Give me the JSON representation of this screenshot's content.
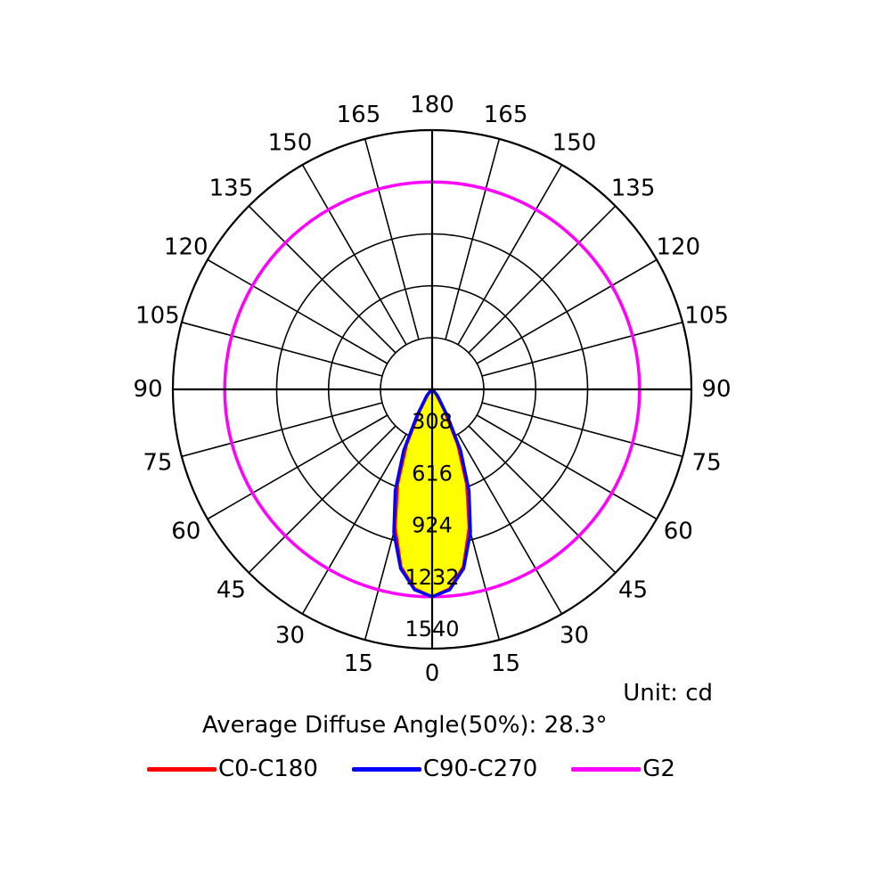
{
  "chart_data": {
    "type": "polar",
    "angle_labels_left": [
      "0",
      "15",
      "30",
      "45",
      "60",
      "75",
      "90",
      "105",
      "120",
      "135",
      "150",
      "165",
      "180"
    ],
    "angle_labels_right": [
      "15",
      "30",
      "45",
      "60",
      "75",
      "90",
      "105",
      "120",
      "135",
      "150",
      "165"
    ],
    "radial_ticks": [
      "308",
      "616",
      "924",
      "1232",
      "1540"
    ],
    "radial_max": 1540,
    "grid": true,
    "series": [
      {
        "name": "C0-C180",
        "color": "#ff0000",
        "fill": "#ffff00",
        "angles": [
          0,
          5,
          10,
          15,
          20,
          25,
          30,
          40,
          50,
          60,
          75,
          90
        ],
        "values": [
          1232,
          1190,
          1070,
          850,
          600,
          360,
          150,
          40,
          8,
          2,
          0,
          0
        ]
      },
      {
        "name": "C90-C270",
        "color": "#0000ff",
        "angles": [
          0,
          5,
          10,
          15,
          20,
          25,
          30,
          40,
          50,
          60,
          75,
          90
        ],
        "values": [
          1232,
          1195,
          1080,
          880,
          640,
          400,
          180,
          50,
          12,
          3,
          0,
          0
        ]
      },
      {
        "name": "G2",
        "color": "#ff00ff",
        "radius_value": 1232
      }
    ]
  },
  "unit_text": "Unit: cd",
  "average_text": "Average Diffuse Angle(50%): 28.3°"
}
